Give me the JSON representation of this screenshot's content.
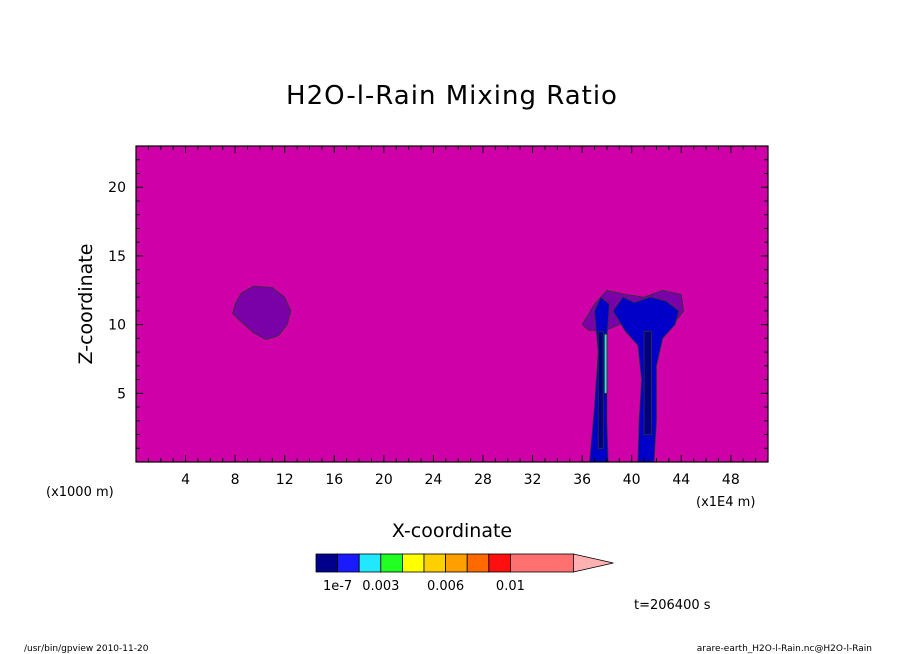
{
  "chart_data": {
    "type": "heatmap",
    "title": "H2O-l-Rain Mixing Ratio",
    "xlabel": "X-coordinate",
    "ylabel": "Z-coordinate",
    "x_unit_left": "(x1000 m)",
    "x_unit_right": "(x1E4 m)",
    "xlim": [
      0,
      51
    ],
    "ylim": [
      0,
      23
    ],
    "x_ticks": [
      4,
      8,
      12,
      16,
      20,
      24,
      28,
      32,
      36,
      40,
      44,
      48
    ],
    "y_ticks": [
      5,
      10,
      15,
      20
    ],
    "background_color": "#d000a8",
    "colorbar": {
      "colors": [
        "#00008b",
        "#1a1aff",
        "#22e8ff",
        "#22ff22",
        "#ffff00",
        "#ffd000",
        "#ffa000",
        "#ff6a00",
        "#ff1010",
        "#ff7070"
      ],
      "extend_color": "#ffb0b0",
      "labels": [
        "1e-7",
        "0.003",
        "0.006",
        "0.01"
      ]
    },
    "regions": [
      {
        "color": "#7a00a8",
        "points": [
          [
            8.0,
            11.5
          ],
          [
            8.5,
            12.3
          ],
          [
            9.5,
            12.8
          ],
          [
            11.0,
            12.7
          ],
          [
            12.0,
            12.0
          ],
          [
            12.5,
            11.0
          ],
          [
            12.2,
            10.0
          ],
          [
            11.5,
            9.2
          ],
          [
            10.5,
            8.9
          ],
          [
            9.5,
            9.4
          ],
          [
            8.5,
            10.2
          ],
          [
            7.8,
            10.8
          ]
        ]
      },
      {
        "color": "#7a00a8",
        "points": [
          [
            36.0,
            10.0
          ],
          [
            37.0,
            11.5
          ],
          [
            38.0,
            12.5
          ],
          [
            39.5,
            12.2
          ],
          [
            41.0,
            12.0
          ],
          [
            42.5,
            12.5
          ],
          [
            44.0,
            12.2
          ],
          [
            44.2,
            11.0
          ],
          [
            43.5,
            10.2
          ],
          [
            42.5,
            9.8
          ],
          [
            41.5,
            10.0
          ],
          [
            40.5,
            10.5
          ],
          [
            39.5,
            10.2
          ],
          [
            38.5,
            9.8
          ],
          [
            37.5,
            9.5
          ],
          [
            36.5,
            9.6
          ]
        ]
      },
      {
        "color": "#0000c8",
        "points": [
          [
            37.0,
            11.0
          ],
          [
            37.5,
            12.0
          ],
          [
            38.2,
            11.5
          ],
          [
            38.0,
            9.0
          ],
          [
            38.0,
            3.0
          ],
          [
            38.1,
            0.0
          ],
          [
            36.6,
            0.0
          ],
          [
            37.0,
            4.0
          ],
          [
            37.3,
            8.0
          ]
        ]
      },
      {
        "color": "#0000c8",
        "points": [
          [
            38.5,
            11.0
          ],
          [
            39.3,
            12.0
          ],
          [
            40.2,
            11.6
          ],
          [
            41.5,
            12.0
          ],
          [
            42.8,
            11.7
          ],
          [
            43.8,
            11.0
          ],
          [
            43.5,
            10.0
          ],
          [
            42.5,
            9.0
          ],
          [
            42.0,
            7.0
          ],
          [
            42.0,
            3.0
          ],
          [
            41.8,
            0.0
          ],
          [
            40.5,
            0.0
          ],
          [
            40.6,
            3.0
          ],
          [
            40.8,
            6.0
          ],
          [
            40.5,
            8.5
          ],
          [
            39.5,
            9.5
          ]
        ]
      },
      {
        "color": "#000080",
        "points": [
          [
            37.3,
            9.5
          ],
          [
            37.7,
            9.5
          ],
          [
            37.7,
            1.0
          ],
          [
            37.3,
            1.0
          ]
        ]
      },
      {
        "color": "#000080",
        "points": [
          [
            41.0,
            9.5
          ],
          [
            41.6,
            9.5
          ],
          [
            41.6,
            2.0
          ],
          [
            41.0,
            2.0
          ]
        ]
      },
      {
        "color": "#22e8ff",
        "points": [
          [
            37.8,
            9.3
          ],
          [
            38.0,
            9.3
          ],
          [
            38.0,
            5.0
          ],
          [
            37.8,
            5.0
          ]
        ]
      }
    ]
  },
  "time_label": "t=206400 s",
  "footer_left": "/usr/bin/gpview  2010-11-20",
  "footer_right": "arare-earth_H2O-l-Rain.nc@H2O-l-Rain"
}
